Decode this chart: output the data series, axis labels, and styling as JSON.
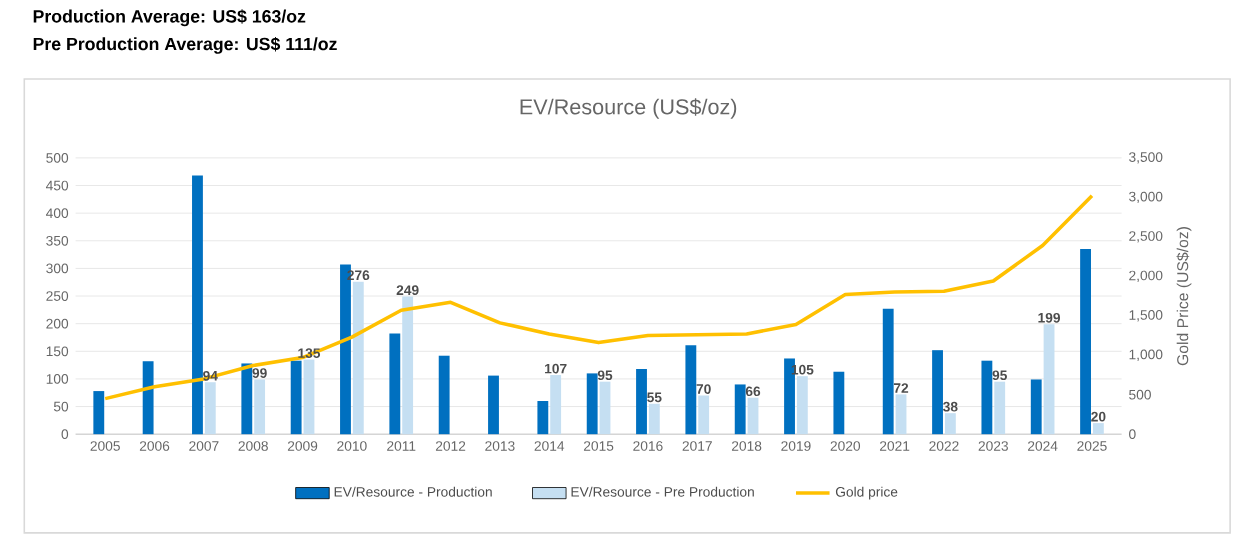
{
  "chart_data": {
    "type": "bar",
    "title": "EV/Resource  (US$/oz)",
    "annotations": [
      "**Production Average: US$ 163/oz**",
      "**Pre Production Average: US$ 111/oz**"
    ],
    "categories": [
      "2005",
      "2006",
      "2007",
      "2008",
      "2009",
      "2010",
      "2011",
      "2012",
      "2013",
      "2014",
      "2015",
      "2016",
      "2017",
      "2018",
      "2019",
      "2020",
      "2021",
      "2022",
      "2023",
      "2024",
      "2025"
    ],
    "series": [
      {
        "name": "EV/Resource - Production",
        "color": "#0070c0",
        "values": [
          78,
          132,
          468,
          128,
          133,
          307,
          182,
          142,
          106,
          60,
          110,
          118,
          161,
          90,
          137,
          113,
          227,
          152,
          133,
          99,
          335
        ]
      },
      {
        "name": "EV/Resource - Pre Production",
        "color": "#c5dff2",
        "values": [
          null,
          null,
          94,
          99,
          135,
          276,
          249,
          null,
          null,
          107,
          95,
          55,
          70,
          66,
          105,
          null,
          72,
          38,
          95,
          199,
          20
        ],
        "value_labels": [
          null,
          null,
          "94",
          "99",
          "135",
          "276",
          "249",
          null,
          null,
          "107",
          "95",
          "55",
          "70",
          "66",
          "105",
          null,
          "72",
          "38",
          "95",
          "199",
          "20"
        ]
      },
      {
        "name": "Gold price",
        "color": "#ffc000",
        "type": "line",
        "axis": "y2",
        "values": [
          450,
          600,
          700,
          870,
          970,
          1230,
          1570,
          1670,
          1410,
          1270,
          1160,
          1250,
          1260,
          1270,
          1390,
          1770,
          1800,
          1810,
          1940,
          2390,
          3020
        ]
      }
    ],
    "ylim": [
      0,
      500
    ],
    "yticks": [
      0,
      50,
      100,
      150,
      200,
      250,
      300,
      350,
      400,
      450,
      500
    ],
    "y2label": "Gold Price (US$/oz)",
    "y2lim": [
      0,
      3500
    ],
    "y2ticks": [
      0,
      500,
      {
        "value": 1000,
        "label": "1,000"
      },
      {
        "value": 1500,
        "label": "1,500"
      },
      {
        "value": 2000,
        "label": "2,000"
      },
      {
        "value": 2500,
        "label": "2,500"
      },
      {
        "value": 3000,
        "label": "3,000"
      },
      {
        "value": 3500,
        "label": "3,500"
      }
    ],
    "grid": "y",
    "legend": "bottom",
    "marker": "none",
    "line_style": "solid"
  }
}
